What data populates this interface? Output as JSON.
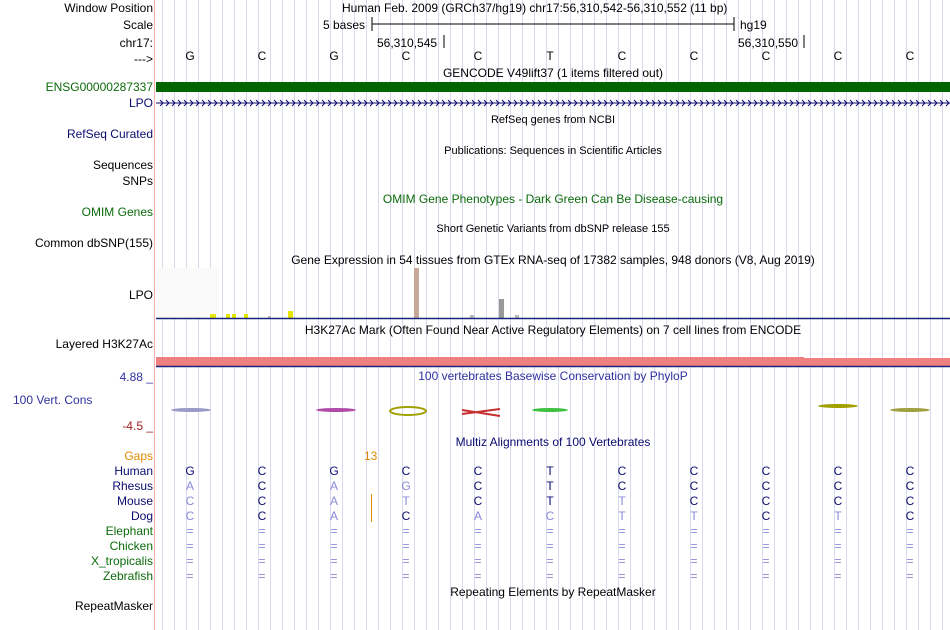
{
  "header": {
    "window_position_label": "Window Position",
    "scale_label": "Scale",
    "chr_label": "chr17:",
    "arrow_label": "--->",
    "assembly": "Human Feb. 2009 (GRCh37/hg19)   chr17:56,310,542-56,310,552 (11 bp)",
    "scale_text": "5 bases",
    "scale_db": "hg19",
    "pos_left": "56,310,545",
    "pos_right": "56,310,550"
  },
  "bases": [
    "G",
    "C",
    "G",
    "C",
    "C",
    "T",
    "C",
    "C",
    "C",
    "C",
    "C"
  ],
  "tracks": {
    "gencode": {
      "title": "GENCODE V49lift37 (1 items filtered out)",
      "gene": "ENSG00000287337",
      "gene2": "LPO"
    },
    "refseq": {
      "title": "RefSeq genes from NCBI",
      "label": "RefSeq Curated"
    },
    "publications": {
      "title": "Publications: Sequences in Scientific Articles",
      "label": "Sequences"
    },
    "snps": {
      "label": "SNPs"
    },
    "omim": {
      "title": "OMIM Gene Phenotypes - Dark Green Can Be Disease-causing",
      "label": "OMIM Genes"
    },
    "dbsnp": {
      "title": "Short Genetic Variants from dbSNP release 155",
      "label": "Common dbSNP(155)"
    },
    "gtex": {
      "title": "Gene Expression in 54 tissues from GTEx RNA-seq of 17382 samples, 948 donors (V8, Aug 2019)",
      "label": "LPO"
    },
    "h3k27ac": {
      "title": "H3K27Ac Mark (Often Found Near Active Regulatory Elements) on 7 cell lines from ENCODE",
      "label": "Layered H3K27Ac"
    },
    "phylop": {
      "title": "100 vertebrates Basewise Conservation by PhyloP",
      "label": "100 Vert. Cons",
      "max": "4.88 _",
      "min": "-4.5 _"
    },
    "multiz": {
      "title": "Multiz Alignments of 100 Vertebrates",
      "gaps_label": "Gaps",
      "gaps_value": "13"
    },
    "repeatmasker": {
      "title": "Repeating Elements by RepeatMasker",
      "label": "RepeatMasker"
    }
  },
  "species": [
    {
      "name": "Human",
      "bases": [
        "G",
        "C",
        "G",
        "C",
        "C",
        "T",
        "C",
        "C",
        "C",
        "C",
        "C"
      ],
      "faded": [
        0,
        0,
        0,
        0,
        0,
        0,
        0,
        0,
        0,
        0,
        0
      ]
    },
    {
      "name": "Rhesus",
      "bases": [
        "A",
        "C",
        "A",
        "G",
        "C",
        "T",
        "C",
        "C",
        "C",
        "C",
        "C"
      ],
      "faded": [
        1,
        0,
        1,
        1,
        0,
        0,
        0,
        0,
        0,
        0,
        0
      ]
    },
    {
      "name": "Mouse",
      "bases": [
        "C",
        "C",
        "A",
        "T",
        "C",
        "T",
        "T",
        "C",
        "C",
        "C",
        "C"
      ],
      "faded": [
        1,
        0,
        1,
        1,
        0,
        0,
        1,
        0,
        0,
        0,
        0
      ]
    },
    {
      "name": "Dog",
      "bases": [
        "C",
        "C",
        "A",
        "C",
        "A",
        "C",
        "T",
        "T",
        "C",
        "T",
        "C"
      ],
      "faded": [
        1,
        0,
        1,
        0,
        1,
        1,
        1,
        1,
        0,
        1,
        0
      ]
    },
    {
      "name": "Elephant",
      "bases": [
        "=",
        "=",
        "=",
        "=",
        "=",
        "=",
        "=",
        "=",
        "=",
        "=",
        "="
      ],
      "faded": [
        1,
        1,
        1,
        1,
        1,
        1,
        1,
        1,
        1,
        1,
        1
      ]
    },
    {
      "name": "Chicken",
      "bases": [
        "=",
        "=",
        "=",
        "=",
        "=",
        "=",
        "=",
        "=",
        "=",
        "=",
        "="
      ],
      "faded": [
        1,
        1,
        1,
        1,
        1,
        1,
        1,
        1,
        1,
        1,
        1
      ]
    },
    {
      "name": "X_tropicalis",
      "bases": [
        "=",
        "=",
        "=",
        "=",
        "=",
        "=",
        "=",
        "=",
        "=",
        "=",
        "="
      ],
      "faded": [
        1,
        1,
        1,
        1,
        1,
        1,
        1,
        1,
        1,
        1,
        1
      ]
    },
    {
      "name": "Zebrafish",
      "bases": [
        "=",
        "=",
        "=",
        "=",
        "=",
        "=",
        "=",
        "=",
        "=",
        "=",
        "="
      ],
      "faded": [
        1,
        1,
        1,
        1,
        1,
        1,
        1,
        1,
        1,
        1,
        1
      ]
    }
  ],
  "colors": {
    "gencode_bar": "#006400",
    "h3k27ac_bar": "#f08080",
    "navy": "#0b0b6e",
    "green": "#0b6b0b"
  }
}
